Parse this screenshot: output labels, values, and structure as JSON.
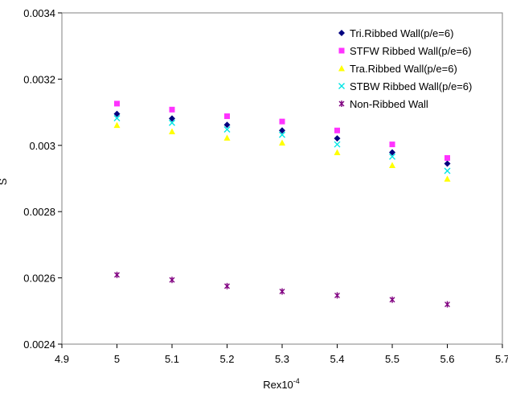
{
  "chart_data": {
    "type": "scatter",
    "title": "",
    "xlabel": {
      "base": "Rex10",
      "superscript": "-4"
    },
    "ylabel": "S",
    "xlim": [
      4.9,
      5.7
    ],
    "ylim": [
      0.0024,
      0.0034
    ],
    "xticks": [
      4.9,
      5.0,
      5.1,
      5.2,
      5.3,
      5.4,
      5.5,
      5.6,
      5.7
    ],
    "xtick_labels": [
      "4.9",
      "5",
      "5.1",
      "5.2",
      "5.3",
      "5.4",
      "5.5",
      "5.6",
      "5.7"
    ],
    "yticks": [
      0.0024,
      0.0026,
      0.0028,
      0.003,
      0.0032,
      0.0034
    ],
    "ytick_labels": [
      "0.0024",
      "0.0026",
      "0.0028",
      "0.003",
      "0.0032",
      "0.0034"
    ],
    "grid": false,
    "legend_position": "top-right",
    "x": [
      5.0,
      5.1,
      5.2,
      5.3,
      5.4,
      5.5,
      5.6
    ],
    "series": [
      {
        "name": "Tri.Ribbed Wall(p/e=6)",
        "marker": "diamond",
        "color": "#000080",
        "values": [
          0.003095,
          0.003081,
          0.003062,
          0.003045,
          0.003021,
          0.002979,
          0.002945
        ]
      },
      {
        "name": "STFW Ribbed Wall(p/e=6)",
        "marker": "square",
        "color": "#ff33ff",
        "values": [
          0.003126,
          0.003108,
          0.003088,
          0.003072,
          0.003045,
          0.003003,
          0.002962
        ]
      },
      {
        "name": "Tra.Ribbed Wall(p/e=6)",
        "marker": "triangle",
        "color": "#ffff00",
        "values": [
          0.003061,
          0.003042,
          0.003023,
          0.003008,
          0.002979,
          0.00294,
          0.002899
        ]
      },
      {
        "name": "STBW Ribbed Wall(p/e=6)",
        "marker": "x",
        "color": "#00e5e5",
        "values": [
          0.003082,
          0.003068,
          0.003048,
          0.003032,
          0.003003,
          0.002966,
          0.002923
        ]
      },
      {
        "name": "Non-Ribbed Wall",
        "marker": "asterisk",
        "color": "#800080",
        "values": [
          0.002609,
          0.002594,
          0.002575,
          0.002559,
          0.002547,
          0.002534,
          0.00252
        ]
      }
    ]
  }
}
